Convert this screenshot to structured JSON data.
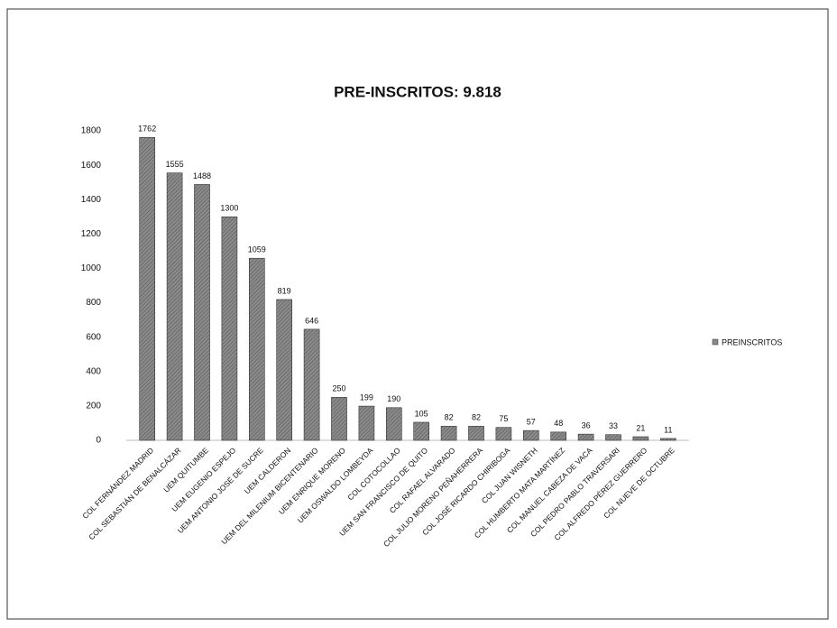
{
  "chart_data": {
    "type": "bar",
    "title": "PRE-INSCRITOS: 9.818",
    "categories": [
      "COL FERNÁNDEZ MADRID",
      "COL SEBASTIÁN DE BENALCÁZAR",
      "UEM QUITUMBE",
      "UEM EUGENIO ESPEJO",
      "UEM ANTONIO JOSÉ DE SUCRE",
      "UEM CALDERON",
      "UEM DEL MILENIUM BICENTENARIO",
      "UEM ENRIQUE MORENO",
      "UEM OSWALDO LOMBEYDA",
      "COL COTOCOLLAO",
      "UEM SAN FRANCISCO DE QUITO",
      "COL RAFAEL ALVARADO",
      "COL JULIO MORENO PEÑAHERRERA",
      "COL JOSÉ RICARDO CHIRIBOGA",
      "COL JUAN WISNETH",
      "COL HUMBERTO MATA MARTÍNEZ",
      "COL MANUEL CABEZA DE VACA",
      "COL PEDRO PABLO TRAVERSARI",
      "COL ALFREDO PÉREZ GUERRERO",
      "COL NUEVE DE OCTUBRE"
    ],
    "series": [
      {
        "name": "PREINSCRITOS",
        "color": "#8a8a8a",
        "values": [
          1762,
          1555,
          1488,
          1300,
          1059,
          819,
          646,
          250,
          199,
          190,
          105,
          82,
          82,
          75,
          57,
          48,
          36,
          33,
          21,
          11
        ]
      }
    ],
    "ylim": [
      0,
      1800
    ],
    "yticks": [
      0,
      200,
      400,
      600,
      800,
      1000,
      1200,
      1400,
      1600,
      1800
    ],
    "grid": false,
    "legend": "right"
  }
}
